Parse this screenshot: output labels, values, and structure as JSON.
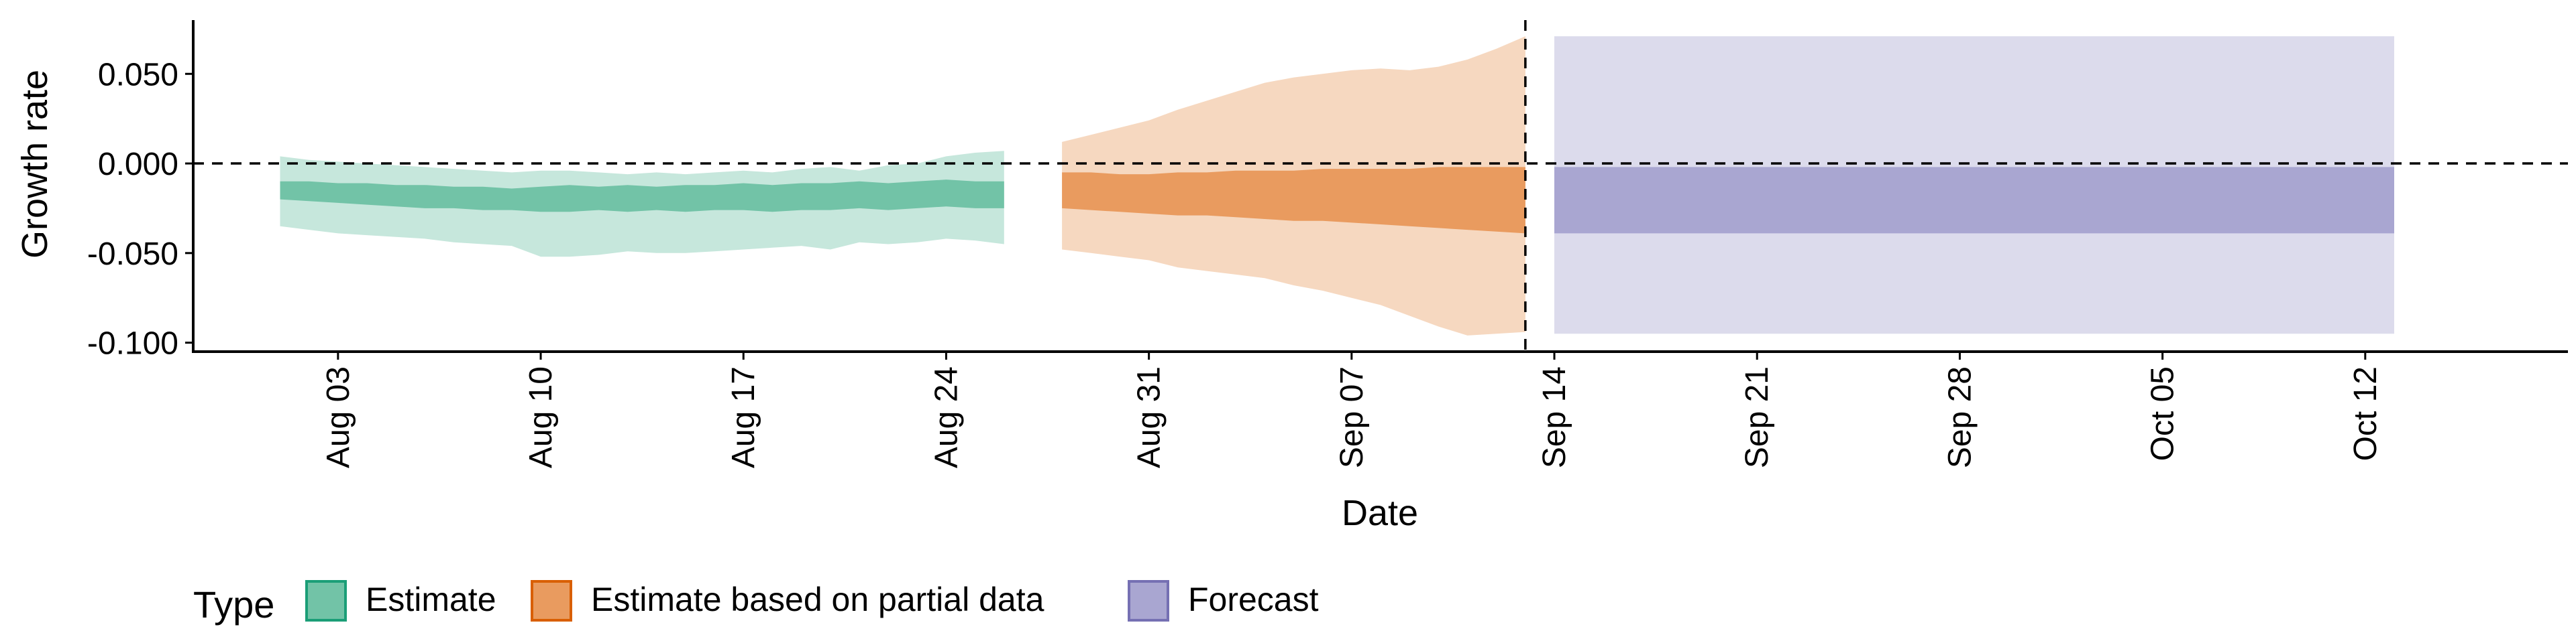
{
  "chart_data": {
    "type": "area",
    "xlabel": "Date",
    "ylabel": "Growth rate",
    "x_ticks": [
      "Aug 03",
      "Aug 10",
      "Aug 17",
      "Aug 24",
      "Aug 31",
      "Sep 07",
      "Sep 14",
      "Sep 21",
      "Sep 28",
      "Oct 05",
      "Oct 12"
    ],
    "x_tick_dates": [
      "2020-08-03",
      "2020-08-10",
      "2020-08-17",
      "2020-08-24",
      "2020-08-31",
      "2020-09-07",
      "2020-09-14",
      "2020-09-21",
      "2020-09-28",
      "2020-10-05",
      "2020-10-12"
    ],
    "xlim": [
      "2020-07-29",
      "2020-10-19"
    ],
    "y_ticks": [
      0.05,
      0.0,
      -0.05,
      -0.1
    ],
    "y_tick_labels": [
      "0.050",
      "0.000",
      "-0.050",
      "-0.100"
    ],
    "ylim": [
      -0.105,
      0.08
    ],
    "hline_y": 0.0,
    "vline_date": "2020-09-13",
    "legend": {
      "title": "Type",
      "placement": "bottom-left",
      "items": [
        "Estimate",
        "Estimate based on partial data",
        "Forecast"
      ]
    },
    "colors": {
      "Estimate_outer": "#c6e7dc",
      "Estimate_inner": "#72c3a7",
      "Estimate_key": "#72c3a7",
      "Estimate_key_border": "#1b9e77",
      "Partial_outer": "#f6d8c0",
      "Partial_inner": "#e99b5f",
      "Partial_key": "#e99b5f",
      "Partial_key_border": "#d95f02",
      "Forecast_outer": "#dcdbec",
      "Forecast_inner": "#a9a6d1",
      "Forecast_key": "#a9a6d1",
      "Forecast_key_border": "#7570b3"
    },
    "series": [
      {
        "name": "Estimate",
        "x": [
          "2020-08-01",
          "2020-08-02",
          "2020-08-03",
          "2020-08-04",
          "2020-08-05",
          "2020-08-06",
          "2020-08-07",
          "2020-08-08",
          "2020-08-09",
          "2020-08-10",
          "2020-08-11",
          "2020-08-12",
          "2020-08-13",
          "2020-08-14",
          "2020-08-15",
          "2020-08-16",
          "2020-08-17",
          "2020-08-18",
          "2020-08-19",
          "2020-08-20",
          "2020-08-21",
          "2020-08-22",
          "2020-08-23",
          "2020-08-24",
          "2020-08-25",
          "2020-08-26"
        ],
        "lower_90": [
          -0.035,
          -0.037,
          -0.039,
          -0.04,
          -0.041,
          -0.042,
          -0.044,
          -0.045,
          -0.046,
          -0.052,
          -0.052,
          -0.051,
          -0.049,
          -0.05,
          -0.05,
          -0.049,
          -0.048,
          -0.047,
          -0.046,
          -0.048,
          -0.044,
          -0.045,
          -0.044,
          -0.042,
          -0.043,
          -0.045
        ],
        "upper_90": [
          0.004,
          0.002,
          0.001,
          0.0,
          -0.001,
          -0.002,
          -0.003,
          -0.004,
          -0.005,
          -0.004,
          -0.004,
          -0.005,
          -0.006,
          -0.005,
          -0.006,
          -0.005,
          -0.004,
          -0.005,
          -0.003,
          -0.002,
          -0.004,
          -0.001,
          0.0,
          0.004,
          0.006,
          0.007
        ],
        "lower_50": [
          -0.02,
          -0.021,
          -0.022,
          -0.023,
          -0.024,
          -0.025,
          -0.025,
          -0.026,
          -0.026,
          -0.027,
          -0.027,
          -0.026,
          -0.027,
          -0.026,
          -0.027,
          -0.026,
          -0.026,
          -0.027,
          -0.026,
          -0.026,
          -0.025,
          -0.026,
          -0.025,
          -0.024,
          -0.025,
          -0.025
        ],
        "upper_50": [
          -0.01,
          -0.01,
          -0.011,
          -0.011,
          -0.012,
          -0.012,
          -0.013,
          -0.013,
          -0.014,
          -0.013,
          -0.012,
          -0.013,
          -0.012,
          -0.013,
          -0.012,
          -0.012,
          -0.011,
          -0.012,
          -0.011,
          -0.011,
          -0.01,
          -0.011,
          -0.01,
          -0.009,
          -0.01,
          -0.01
        ]
      },
      {
        "name": "Estimate based on partial data",
        "x": [
          "2020-08-28",
          "2020-08-29",
          "2020-08-30",
          "2020-08-31",
          "2020-09-01",
          "2020-09-02",
          "2020-09-03",
          "2020-09-04",
          "2020-09-05",
          "2020-09-06",
          "2020-09-07",
          "2020-09-08",
          "2020-09-09",
          "2020-09-10",
          "2020-09-11",
          "2020-09-12",
          "2020-09-13"
        ],
        "lower_90": [
          -0.048,
          -0.05,
          -0.052,
          -0.054,
          -0.058,
          -0.06,
          -0.062,
          -0.064,
          -0.068,
          -0.071,
          -0.075,
          -0.079,
          -0.085,
          -0.091,
          -0.096,
          -0.095,
          -0.094
        ],
        "upper_90": [
          0.012,
          0.016,
          0.02,
          0.024,
          0.03,
          0.035,
          0.04,
          0.045,
          0.048,
          0.05,
          0.052,
          0.053,
          0.052,
          0.054,
          0.058,
          0.064,
          0.071
        ],
        "lower_50": [
          -0.025,
          -0.026,
          -0.027,
          -0.028,
          -0.029,
          -0.029,
          -0.03,
          -0.031,
          -0.032,
          -0.032,
          -0.033,
          -0.034,
          -0.035,
          -0.036,
          -0.037,
          -0.038,
          -0.039
        ],
        "upper_50": [
          -0.005,
          -0.005,
          -0.006,
          -0.006,
          -0.005,
          -0.005,
          -0.004,
          -0.004,
          -0.004,
          -0.003,
          -0.003,
          -0.003,
          -0.003,
          -0.002,
          -0.002,
          -0.002,
          -0.002
        ]
      },
      {
        "name": "Forecast",
        "x": [
          "2020-09-14",
          "2020-10-13"
        ],
        "lower_90": [
          -0.095,
          -0.095
        ],
        "upper_90": [
          0.071,
          0.071
        ],
        "lower_50": [
          -0.039,
          -0.039
        ],
        "upper_50": [
          -0.002,
          -0.002
        ]
      }
    ]
  }
}
